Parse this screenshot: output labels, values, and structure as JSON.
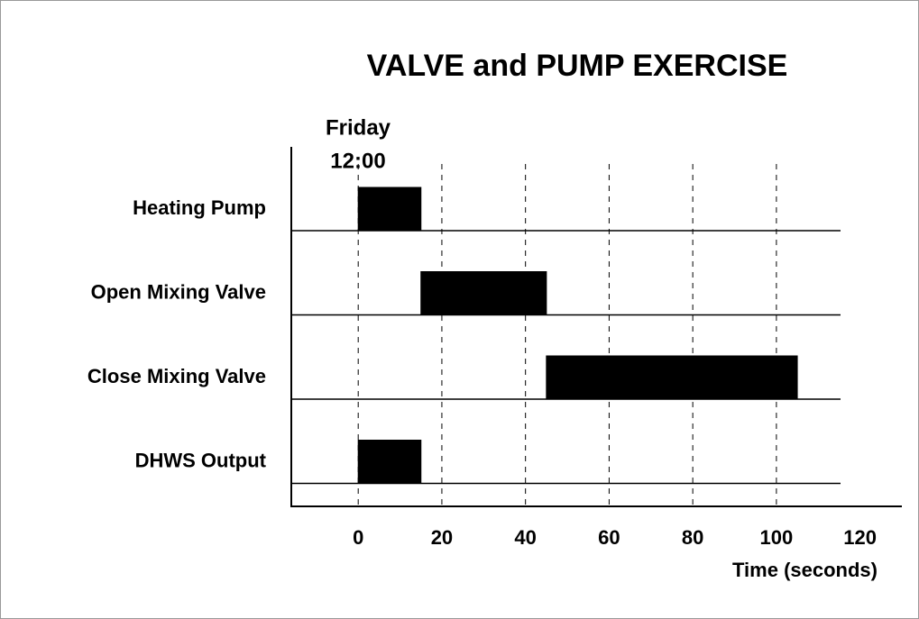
{
  "chart_data": {
    "type": "timing",
    "title": "VALVE and PUMP EXERCISE",
    "annotation": [
      "Friday",
      "12:00"
    ],
    "x_label": "Time (seconds)",
    "categories": [
      "Heating Pump",
      "Open Mixing Valve",
      "Close Mixing Valve",
      "DHWS Output"
    ],
    "starts": [
      0,
      15,
      45,
      0
    ],
    "ends": [
      15,
      45,
      105,
      15
    ],
    "color": "#000000",
    "xlim": [
      -16,
      130
    ],
    "xticks": [
      0,
      20,
      40,
      60,
      80,
      100,
      120
    ],
    "grid": true
  }
}
